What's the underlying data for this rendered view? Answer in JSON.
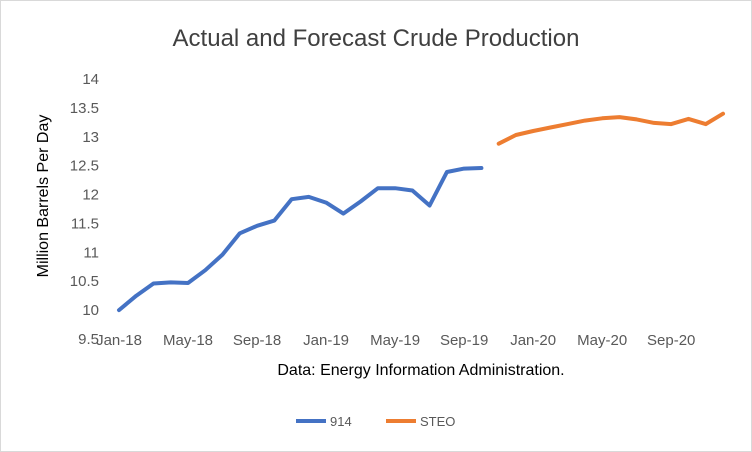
{
  "chart_data": {
    "type": "line",
    "title": "Actual and Forecast Crude Production",
    "xlabel": "Data: Energy Information Administration.",
    "ylabel": "Million Barrels Per Day",
    "ylim": [
      9.5,
      14
    ],
    "y_ticks": [
      "9.5",
      "10",
      "10.5",
      "11",
      "11.5",
      "12",
      "12.5",
      "13",
      "13.5",
      "14"
    ],
    "x_tick_labels": [
      "Jan-18",
      "May-18",
      "Sep-18",
      "Jan-19",
      "May-19",
      "Sep-19",
      "Jan-20",
      "May-20",
      "Sep-20"
    ],
    "x_tick_months": [
      "2018-01",
      "2018-05",
      "2018-09",
      "2019-01",
      "2019-05",
      "2019-09",
      "2020-01",
      "2020-05",
      "2020-09"
    ],
    "xlim": [
      "2018-01",
      "2020-12"
    ],
    "grid": false,
    "legend_position": "bottom",
    "series": [
      {
        "name": "914",
        "color": "#4472c4",
        "x": [
          "2018-01",
          "2018-02",
          "2018-03",
          "2018-04",
          "2018-05",
          "2018-06",
          "2018-07",
          "2018-08",
          "2018-09",
          "2018-10",
          "2018-11",
          "2018-12",
          "2019-01",
          "2019-02",
          "2019-03",
          "2019-04",
          "2019-05",
          "2019-06",
          "2019-07",
          "2019-08",
          "2019-09",
          "2019-10"
        ],
        "values": [
          10.0,
          10.25,
          10.46,
          10.48,
          10.47,
          10.69,
          10.96,
          11.33,
          11.46,
          11.55,
          11.92,
          11.96,
          11.86,
          11.67,
          11.88,
          12.11,
          12.11,
          12.07,
          11.81,
          12.39,
          12.45,
          12.46
        ]
      },
      {
        "name": "STEO",
        "color": "#ed7d31",
        "x": [
          "2019-11",
          "2019-12",
          "2020-01",
          "2020-02",
          "2020-03",
          "2020-04",
          "2020-05",
          "2020-06",
          "2020-07",
          "2020-08",
          "2020-09",
          "2020-10",
          "2020-11",
          "2020-12"
        ],
        "values": [
          12.88,
          13.03,
          13.1,
          13.16,
          13.22,
          13.28,
          13.32,
          13.34,
          13.3,
          13.24,
          13.22,
          13.31,
          13.22,
          13.4
        ]
      }
    ]
  }
}
